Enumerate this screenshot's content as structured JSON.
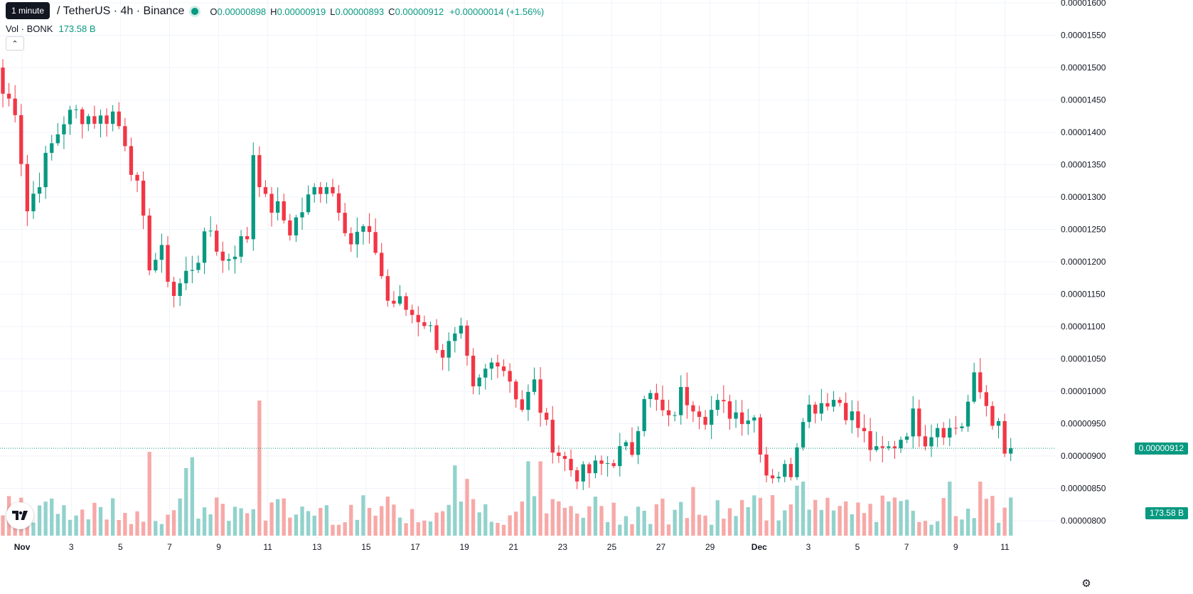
{
  "header": {
    "tooltip": "1 minute",
    "symbol_title": "/ TetherUS · 4h · Binance",
    "ohlc": {
      "open_key": "O",
      "open": "0.00000898",
      "high_key": "H",
      "high": "0.00000919",
      "low_key": "L",
      "low": "0.00000893",
      "close_key": "C",
      "close": "0.00000912",
      "change": "+0.00000014 (+1.56%)"
    },
    "volume_label": "Vol · BONK",
    "volume_value": "173.58 B"
  },
  "collapse_glyph": "⌃",
  "price_tag": "0.00000912",
  "volume_tag": "173.58 B",
  "icons": {
    "logo": "tradingview-logo-icon",
    "settings": "gear-icon",
    "collapse": "chevron-up-icon"
  },
  "colors": {
    "up": "#089981",
    "down": "#f23645",
    "up_volume": "#92d2cc",
    "down_volume": "#f7a9a7"
  },
  "chart_data": {
    "type": "candlestick",
    "title": "",
    "xlabel": "",
    "ylabel": "",
    "ylim": [
      7.8e-06,
      1.6e-05
    ],
    "y_ticks": [
      "0.00000800",
      "0.00000850",
      "0.00000900",
      "0.00000950",
      "0.00001000",
      "0.00001050",
      "0.00001100",
      "0.00001150",
      "0.00001200",
      "0.00001250",
      "0.00001300",
      "0.00001350",
      "0.00001400",
      "0.00001450",
      "0.00001500",
      "0.00001550",
      "0.00001600"
    ],
    "x_ticks": [
      {
        "label": "Nov",
        "day": 31
      },
      {
        "label": "3",
        "day": 33
      },
      {
        "label": "5",
        "day": 35
      },
      {
        "label": "7",
        "day": 37
      },
      {
        "label": "9",
        "day": 39
      },
      {
        "label": "11",
        "day": 41
      },
      {
        "label": "13",
        "day": 43
      },
      {
        "label": "15",
        "day": 45
      },
      {
        "label": "17",
        "day": 47
      },
      {
        "label": "19",
        "day": 49
      },
      {
        "label": "21",
        "day": 51
      },
      {
        "label": "23",
        "day": 53
      },
      {
        "label": "25",
        "day": 55
      },
      {
        "label": "27",
        "day": 57
      },
      {
        "label": "29",
        "day": 59
      },
      {
        "label": "Dec",
        "day": 61
      },
      {
        "label": "3",
        "day": 63
      },
      {
        "label": "5",
        "day": 65
      },
      {
        "label": "7",
        "day": 67
      },
      {
        "label": "9",
        "day": 69
      },
      {
        "label": "11",
        "day": 71
      }
    ],
    "x_range_days": [
      30.1,
      71.25
    ],
    "last_price": 9.12e-06,
    "anchors": [
      [
        0,
        1.46
      ],
      [
        2,
        1.44
      ],
      [
        4,
        1.28
      ],
      [
        6,
        1.33
      ],
      [
        8,
        1.38
      ],
      [
        10,
        1.42
      ],
      [
        12,
        1.43
      ],
      [
        14,
        1.425
      ],
      [
        16,
        1.42
      ],
      [
        18,
        1.43
      ],
      [
        20,
        1.39
      ],
      [
        22,
        1.31
      ],
      [
        24,
        1.2
      ],
      [
        26,
        1.21
      ],
      [
        28,
        1.15
      ],
      [
        30,
        1.18
      ],
      [
        32,
        1.21
      ],
      [
        34,
        1.25
      ],
      [
        36,
        1.2
      ],
      [
        38,
        1.22
      ],
      [
        40,
        1.24
      ],
      [
        41,
        1.37
      ],
      [
        43,
        1.29
      ],
      [
        45,
        1.28
      ],
      [
        47,
        1.25
      ],
      [
        49,
        1.28
      ],
      [
        51,
        1.31
      ],
      [
        53,
        1.325
      ],
      [
        55,
        1.29
      ],
      [
        57,
        1.23
      ],
      [
        59,
        1.25
      ],
      [
        60,
        1.23
      ],
      [
        61,
        1.22
      ],
      [
        63,
        1.14
      ],
      [
        65,
        1.135
      ],
      [
        67,
        1.12
      ],
      [
        69,
        1.11
      ],
      [
        72,
        1.06
      ],
      [
        75,
        1.085
      ],
      [
        77,
        0.995
      ],
      [
        79,
        1.03
      ],
      [
        81,
        1.055
      ],
      [
        83,
        1.02
      ],
      [
        85,
        0.975
      ],
      [
        87,
        1.01
      ],
      [
        89,
        0.94
      ],
      [
        91,
        0.905
      ],
      [
        93,
        0.88
      ],
      [
        95,
        0.87
      ],
      [
        97,
        0.88
      ],
      [
        99,
        0.89
      ],
      [
        101,
        0.905
      ],
      [
        103,
        0.91
      ],
      [
        105,
        1.0
      ],
      [
        107,
        0.98
      ],
      [
        109,
        0.95
      ],
      [
        111,
        0.995
      ],
      [
        113,
        0.985
      ],
      [
        115,
        0.965
      ],
      [
        117,
        0.975
      ],
      [
        119,
        0.97
      ],
      [
        121,
        0.965
      ],
      [
        123,
        0.96
      ],
      [
        125,
        0.875
      ],
      [
        127,
        0.875
      ],
      [
        129,
        0.88
      ],
      [
        131,
        0.97
      ],
      [
        133,
        0.98
      ],
      [
        135,
        0.99
      ],
      [
        137,
        0.985
      ],
      [
        139,
        0.96
      ],
      [
        141,
        0.93
      ],
      [
        143,
        0.9
      ],
      [
        145,
        0.91
      ],
      [
        147,
        0.93
      ],
      [
        149,
        0.96
      ],
      [
        151,
        0.93
      ],
      [
        153,
        0.95
      ],
      [
        155,
        0.94
      ],
      [
        157,
        0.95
      ],
      [
        159,
        1.015
      ],
      [
        161,
        0.98
      ],
      [
        163,
        0.94
      ],
      [
        164,
        0.898
      ],
      [
        165,
        0.912
      ]
    ],
    "volume_spikes": [
      [
        0,
        0.15
      ],
      [
        24,
        0.62
      ],
      [
        30,
        0.5
      ],
      [
        31,
        0.58
      ],
      [
        42,
        1.0
      ],
      [
        74,
        0.52
      ],
      [
        76,
        0.42
      ],
      [
        86,
        0.55
      ],
      [
        88,
        0.55
      ],
      [
        113,
        0.36
      ],
      [
        124,
        0.28
      ],
      [
        126,
        0.3
      ],
      [
        130,
        0.37
      ],
      [
        131,
        0.4
      ],
      [
        155,
        0.4
      ],
      [
        158,
        0.2
      ],
      [
        160,
        0.4
      ]
    ],
    "volume_scale_max": 0.0,
    "volume_last": "173.58 B"
  }
}
